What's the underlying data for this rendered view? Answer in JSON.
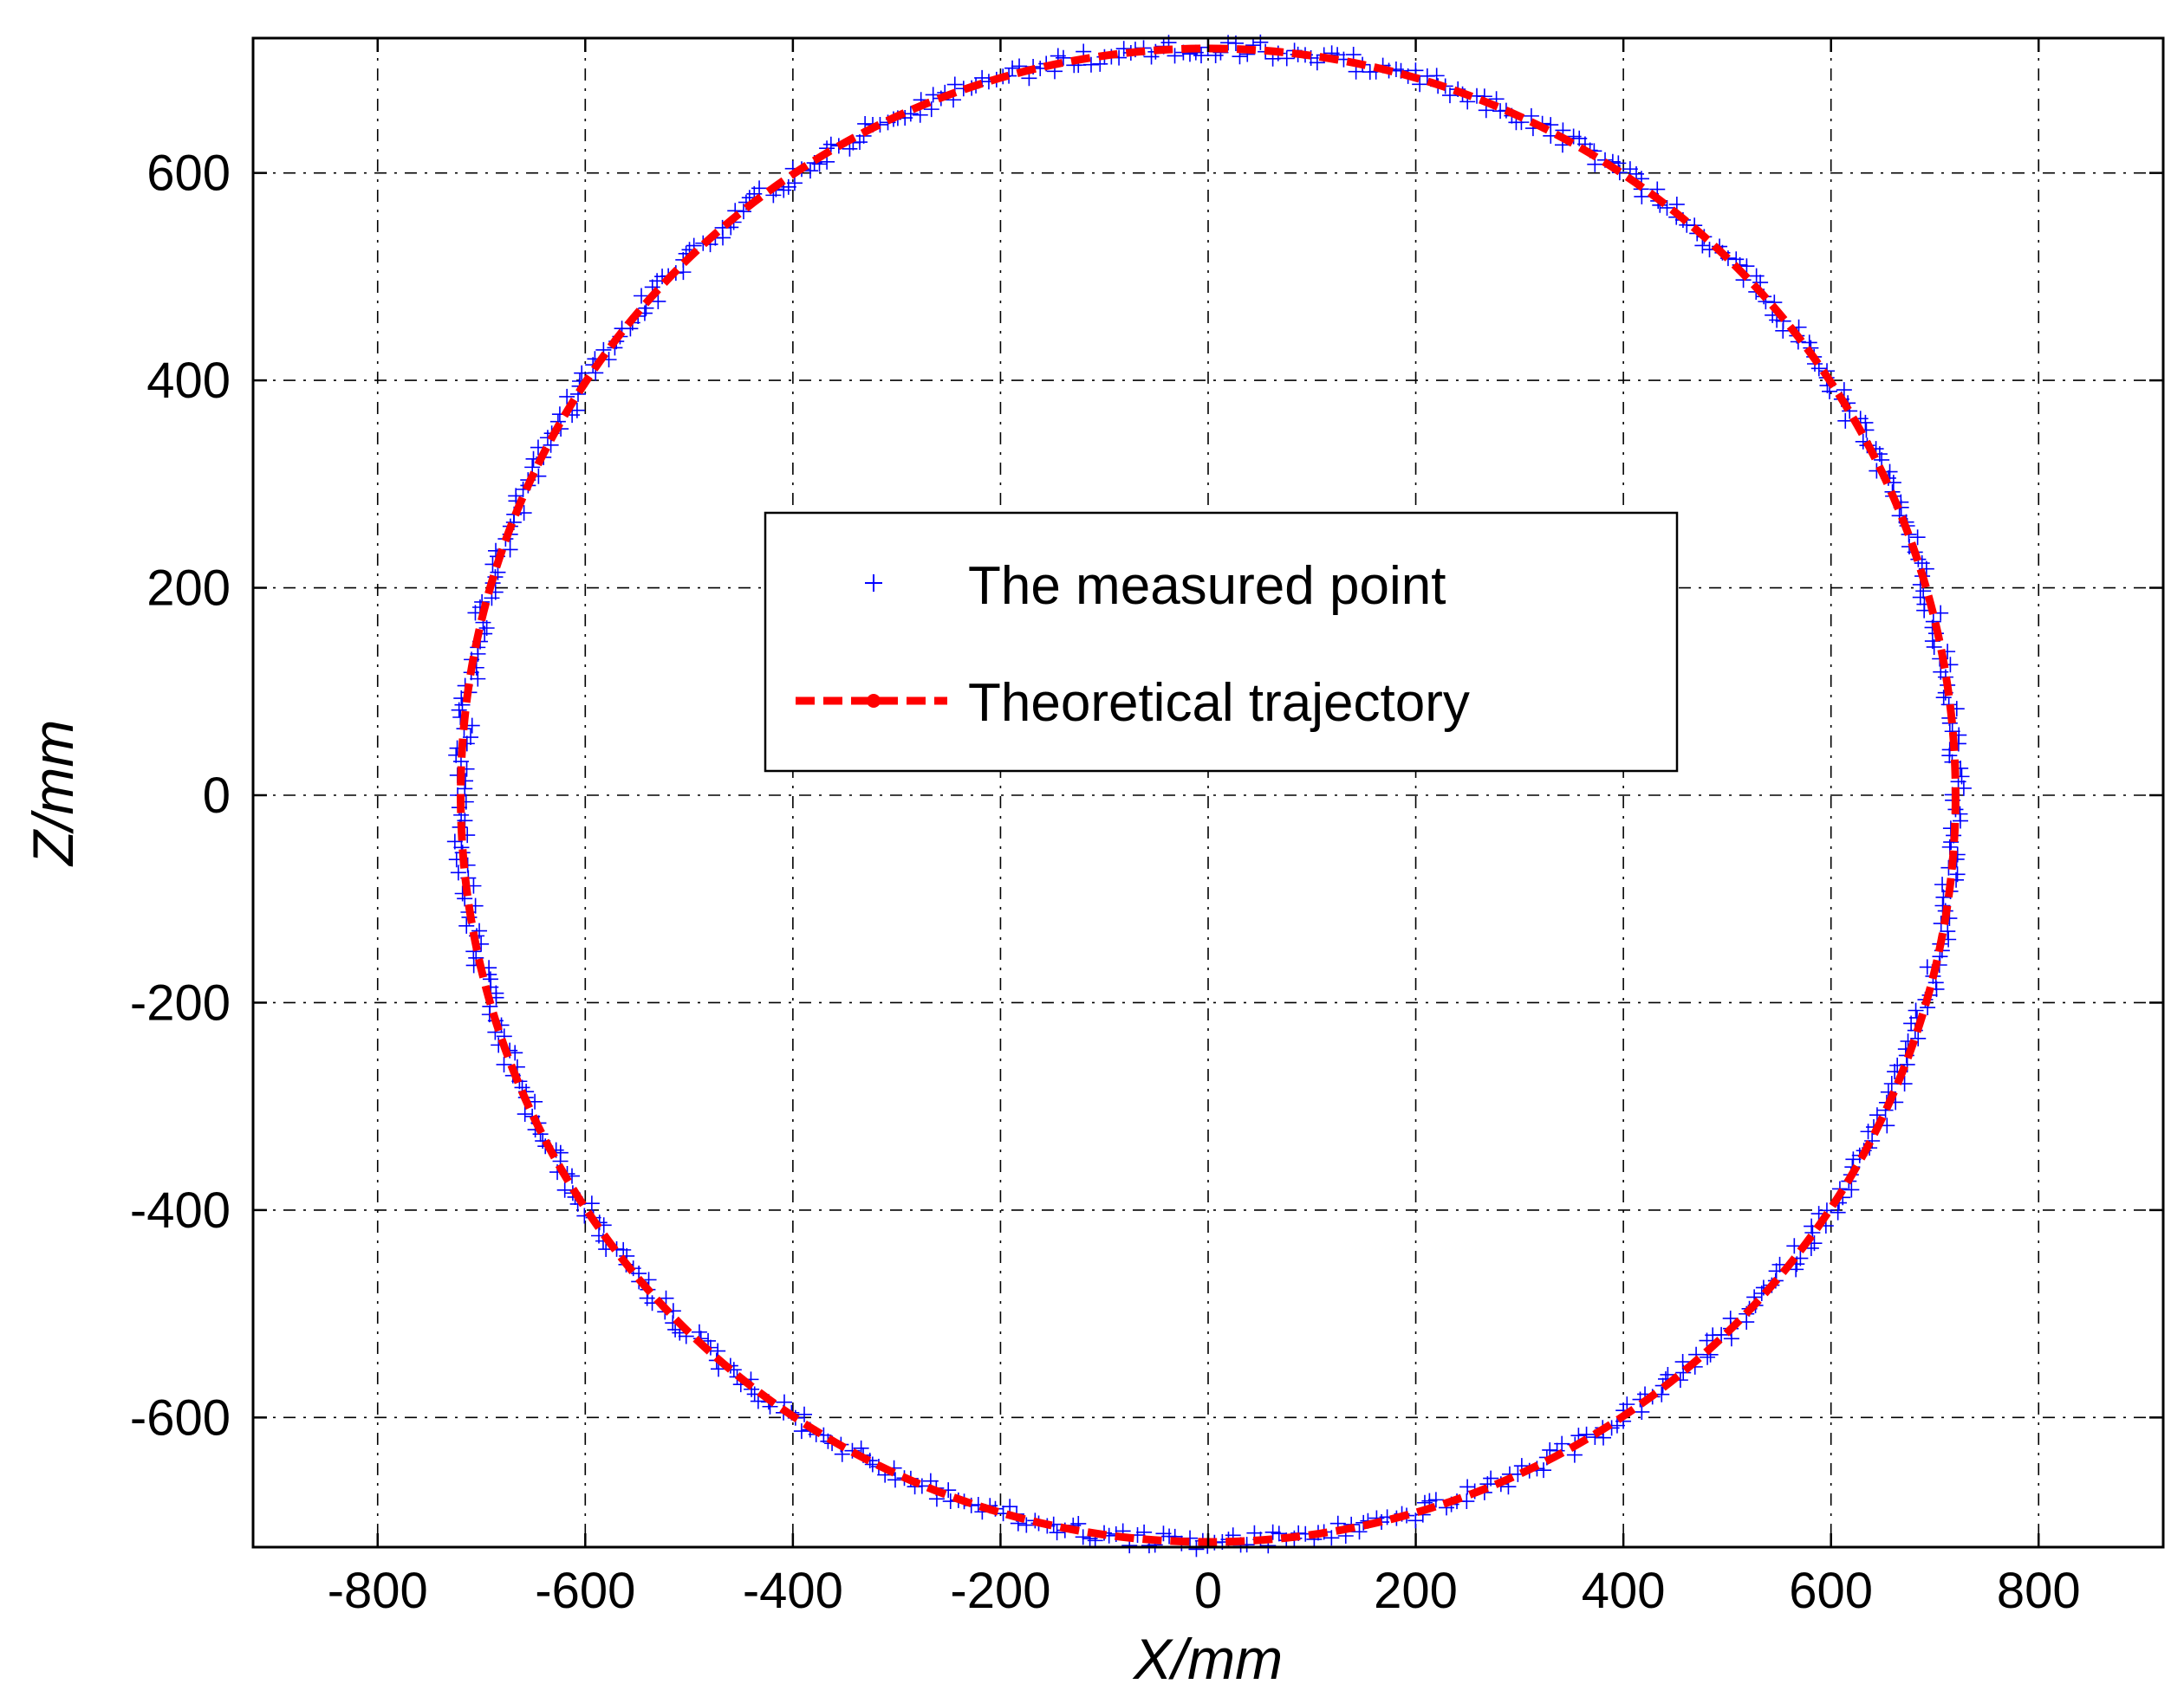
{
  "chart_data": {
    "type": "scatter",
    "title": "",
    "xlabel": "X/mm",
    "ylabel": "Z/mm",
    "xlim": [
      -920,
      920
    ],
    "ylim": [
      -725,
      730
    ],
    "x_ticks": [
      -800,
      -600,
      -400,
      -200,
      0,
      200,
      400,
      600,
      800
    ],
    "x_tick_labels": [
      "-800",
      "-600",
      "-400",
      "-200",
      "0",
      "200",
      "400",
      "600",
      "800"
    ],
    "y_ticks": [
      -600,
      -400,
      -200,
      0,
      200,
      400,
      600
    ],
    "y_tick_labels": [
      "-600",
      "-400",
      "-200",
      "0",
      "200",
      "400",
      "600"
    ],
    "grid": true,
    "legend_position": "center",
    "series": [
      {
        "name": "The measured point",
        "kind": "scatter",
        "marker": "plus",
        "color": "#0000ff",
        "center": [
          0,
          0
        ],
        "radius": 720,
        "point_count": 720,
        "scatter_spread_mm": 8
      },
      {
        "name": "Theoretical trajectory",
        "kind": "line",
        "style": "dashed",
        "color": "#ff0000",
        "center": [
          0,
          0
        ],
        "radius": 720
      }
    ],
    "legend": [
      {
        "label": "The measured point"
      },
      {
        "label": "Theoretical trajectory"
      }
    ]
  }
}
